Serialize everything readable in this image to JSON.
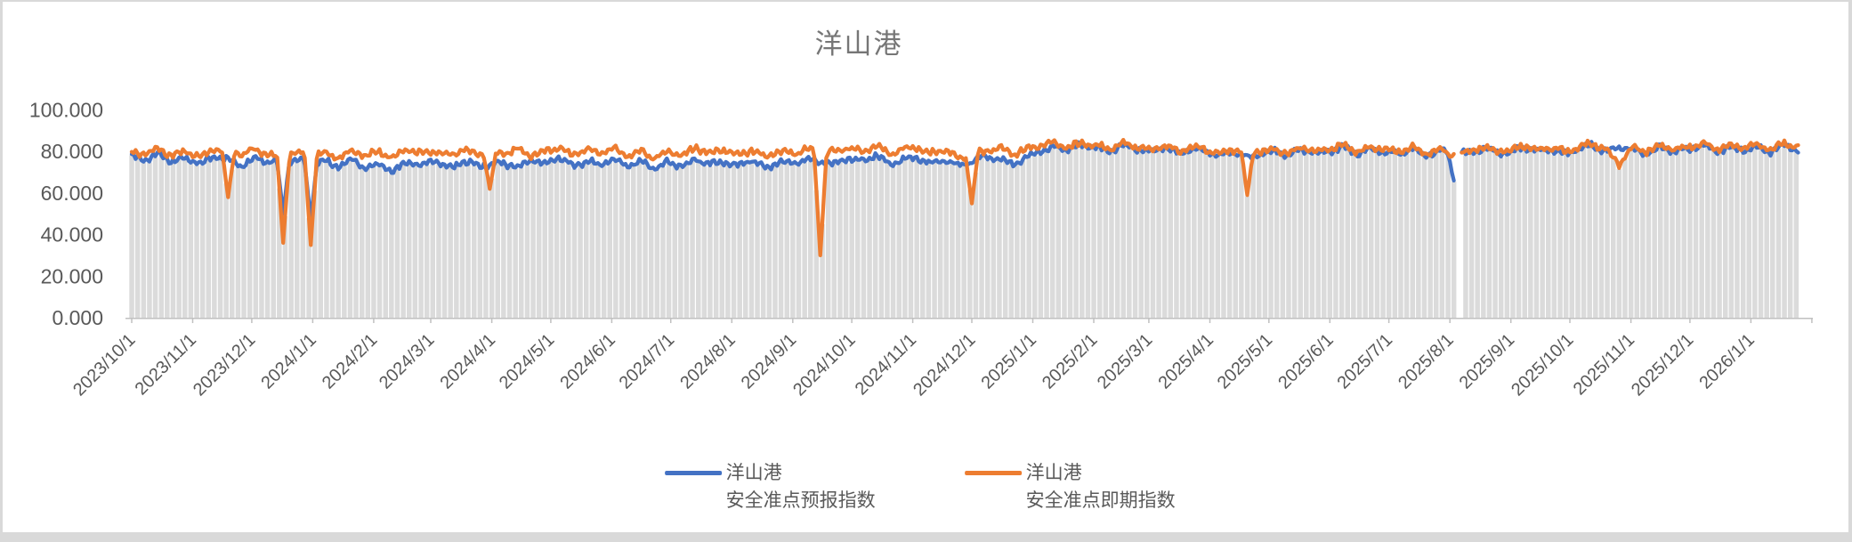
{
  "window": {
    "frame_color": "#d9d9d9",
    "background": "#ffffff"
  },
  "chart_data": {
    "type": "line",
    "title": "洋山港",
    "title_color": "#767676",
    "label_color": "#595959",
    "axis_color": "#c0c0c0",
    "grid": "off",
    "legend_position": "bottom",
    "ylim": [
      0,
      100
    ],
    "y_tick_labels": [
      "0.000",
      "20.000",
      "40.000",
      "60.000",
      "80.000",
      "100.000"
    ],
    "x_tick_labels": [
      "2023/10/1",
      "2023/11/1",
      "2023/12/1",
      "2024/1/1",
      "2024/2/1",
      "2024/3/1",
      "2024/4/1",
      "2024/5/1",
      "2024/6/1",
      "2024/7/1",
      "2024/8/1",
      "2024/9/1",
      "2024/10/1",
      "2024/11/1",
      "2024/12/1",
      "2025/1/1",
      "2025/2/1",
      "2025/3/1",
      "2025/4/1",
      "2025/5/1",
      "2025/6/1",
      "2025/7/1",
      "2025/8/1",
      "2025/9/1",
      "2025/10/1",
      "2025/11/1",
      "2025/12/1",
      "2026/1/1"
    ],
    "axis_end_tick": "2026/2/1",
    "x_start_date": "2023/10/1",
    "sample_interval_days": 7,
    "noise_amplitude": 2.2,
    "data_gap": {
      "start_day": 673,
      "end_day": 675,
      "approx_date": "2025/8/4"
    },
    "background_bars": {
      "color": "#dbdbdb",
      "description": "dense light-gray daily columns reaching up to the lower of the two line series",
      "step_days": 3
    },
    "series": [
      {
        "name": "洋山港 安全准点预报指数",
        "legend_lines": [
          "洋山港",
          "安全准点预报指数"
        ],
        "data_name": "forecast-index-line",
        "color": "#4472c4",
        "phase": 0.7,
        "weekly_values": [
          78,
          76,
          79,
          75,
          77,
          74,
          78,
          76,
          73,
          77,
          75,
          50,
          76,
          47,
          75,
          73,
          76,
          72,
          74,
          70,
          75,
          73,
          76,
          72,
          75,
          74,
          73,
          75,
          72,
          76,
          74,
          77,
          73,
          75,
          74,
          76,
          73,
          75,
          72,
          75,
          73,
          76,
          74,
          75,
          73,
          76,
          72,
          75,
          74,
          76,
          75,
          74,
          77,
          75,
          78,
          74,
          76,
          77,
          74,
          76,
          73,
          75,
          78,
          76,
          74,
          77,
          80,
          82,
          81,
          83,
          82,
          80,
          83,
          81,
          80,
          82,
          79,
          81,
          80,
          78,
          80,
          77,
          79,
          80,
          78,
          81,
          79,
          80,
          82,
          79,
          81,
          80,
          79,
          81,
          78,
          80,
          66,
          79,
          81,
          80,
          79,
          82,
          80,
          81,
          79,
          81,
          83,
          80,
          82,
          81,
          79,
          82,
          80,
          81,
          83,
          80,
          82,
          81,
          82,
          80,
          83,
          81
        ]
      },
      {
        "name": "洋山港 安全准点即期指数",
        "legend_lines": [
          "洋山港",
          "安全准点即期指数"
        ],
        "data_name": "spot-index-line",
        "color": "#ed7d31",
        "phase": 3.9,
        "weekly_values": [
          80,
          79,
          81,
          78,
          80,
          77,
          81,
          58,
          79,
          81,
          78,
          36,
          79,
          35,
          79,
          77,
          80,
          78,
          80,
          77,
          81,
          79,
          80,
          78,
          81,
          79,
          62,
          79,
          81,
          78,
          80,
          82,
          78,
          81,
          79,
          81,
          78,
          80,
          77,
          80,
          78,
          82,
          79,
          81,
          78,
          81,
          77,
          80,
          79,
          81,
          30,
          80,
          82,
          80,
          83,
          79,
          81,
          82,
          79,
          81,
          77,
          55,
          80,
          82,
          79,
          81,
          83,
          84,
          82,
          84,
          83,
          81,
          84,
          82,
          81,
          83,
          80,
          82,
          81,
          79,
          81,
          59,
          80,
          81,
          79,
          82,
          80,
          81,
          83,
          80,
          82,
          81,
          80,
          82,
          79,
          81,
          78,
          80,
          82,
          81,
          80,
          83,
          81,
          82,
          80,
          82,
          84,
          81,
          74,
          82,
          80,
          83,
          81,
          82,
          84,
          81,
          83,
          82,
          83,
          81,
          84,
          82
        ]
      }
    ]
  }
}
